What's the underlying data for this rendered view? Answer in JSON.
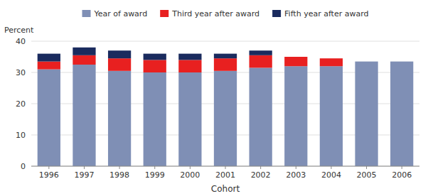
{
  "chart_data": {
    "type": "bar",
    "stacked": true,
    "categories": [
      "1996",
      "1997",
      "1998",
      "1999",
      "2000",
      "2001",
      "2002",
      "2003",
      "2004",
      "2005",
      "2006"
    ],
    "series": [
      {
        "name": "Year of award",
        "color": "#7f8fb5",
        "values": [
          31.0,
          32.5,
          30.5,
          30.0,
          30.0,
          30.5,
          31.5,
          32.0,
          32.0,
          33.5,
          33.5
        ]
      },
      {
        "name": "Third year after award",
        "color": "#e82020",
        "values": [
          2.5,
          3.0,
          4.0,
          4.0,
          4.0,
          4.0,
          4.0,
          3.0,
          2.5,
          0.0,
          0.0
        ]
      },
      {
        "name": "Fifth year after award",
        "color": "#1a2b5e",
        "values": [
          2.5,
          2.5,
          2.5,
          2.0,
          2.0,
          1.5,
          1.5,
          0.0,
          0.0,
          0.0,
          0.0
        ]
      }
    ],
    "xlabel": "Cohort",
    "ylabel": "Percent",
    "ylim": [
      0,
      40
    ],
    "yticks": [
      0,
      10,
      20,
      30,
      40
    ],
    "grid": true,
    "legend": "top"
  }
}
